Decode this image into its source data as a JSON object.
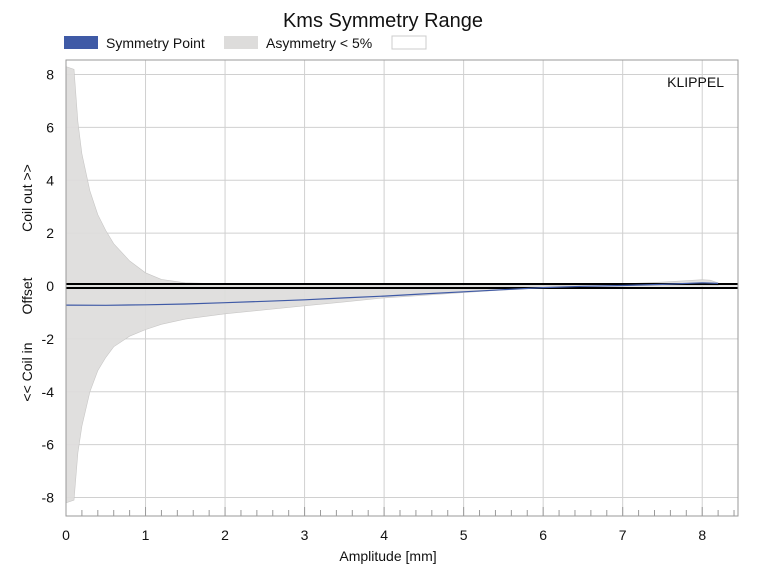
{
  "chart_data": {
    "type": "area",
    "title": "Kms Symmetry Range",
    "xlabel": "Amplitude [mm]",
    "ylabel_parts": [
      "<< Coil in",
      "Offset",
      "Coil out >>"
    ],
    "watermark": "KLIPPEL",
    "xlim": [
      0,
      8.45
    ],
    "ylim": [
      -8.7,
      8.55
    ],
    "x_ticks": [
      0,
      1,
      2,
      3,
      4,
      5,
      6,
      7,
      8
    ],
    "y_ticks": [
      -8,
      -6,
      -4,
      -2,
      0,
      2,
      4,
      6,
      8
    ],
    "grid": true,
    "legend_position": "top-left",
    "legend": [
      {
        "name": "Symmetry Point",
        "color": "#3f5aa6"
      },
      {
        "name": "Asymmetry < 5%",
        "color": "#dddcdb"
      },
      {
        "name": "",
        "color": "#ffffff"
      }
    ],
    "series": [
      {
        "name": "Asymmetry < 5%",
        "kind": "band",
        "color": "#dddcdb",
        "x": [
          0.0,
          0.1,
          0.15,
          0.2,
          0.3,
          0.4,
          0.5,
          0.6,
          0.8,
          1.0,
          1.2,
          1.5,
          2.0,
          2.5,
          3.0,
          3.5,
          4.0,
          4.5,
          5.0,
          5.5,
          6.0,
          6.5,
          7.0,
          7.5,
          7.8,
          8.0,
          8.1,
          8.2
        ],
        "upper": [
          8.3,
          8.2,
          6.2,
          5.0,
          3.6,
          2.7,
          2.1,
          1.6,
          0.95,
          0.5,
          0.25,
          0.12,
          0.08,
          0.07,
          0.06,
          0.05,
          0.04,
          0.03,
          0.02,
          0.02,
          0.02,
          0.04,
          0.08,
          0.15,
          0.2,
          0.24,
          0.22,
          0.12
        ],
        "lower": [
          -8.2,
          -8.1,
          -6.3,
          -5.3,
          -4.0,
          -3.2,
          -2.7,
          -2.3,
          -1.9,
          -1.65,
          -1.45,
          -1.25,
          -1.05,
          -0.9,
          -0.75,
          -0.6,
          -0.45,
          -0.35,
          -0.25,
          -0.15,
          -0.08,
          -0.03,
          -0.01,
          0.0,
          0.0,
          0.0,
          0.0,
          0.02
        ]
      },
      {
        "name": "Symmetry Point",
        "kind": "line",
        "color": "#3f5aa6",
        "x": [
          0.0,
          0.5,
          1.0,
          1.5,
          2.0,
          2.5,
          3.0,
          3.5,
          4.0,
          4.5,
          5.0,
          5.5,
          6.0,
          6.5,
          7.0,
          7.5,
          8.0,
          8.2
        ],
        "y": [
          -0.72,
          -0.73,
          -0.71,
          -0.68,
          -0.63,
          -0.58,
          -0.52,
          -0.45,
          -0.38,
          -0.3,
          -0.22,
          -0.14,
          -0.06,
          -0.01,
          0.02,
          0.06,
          0.12,
          0.1
        ]
      }
    ]
  }
}
